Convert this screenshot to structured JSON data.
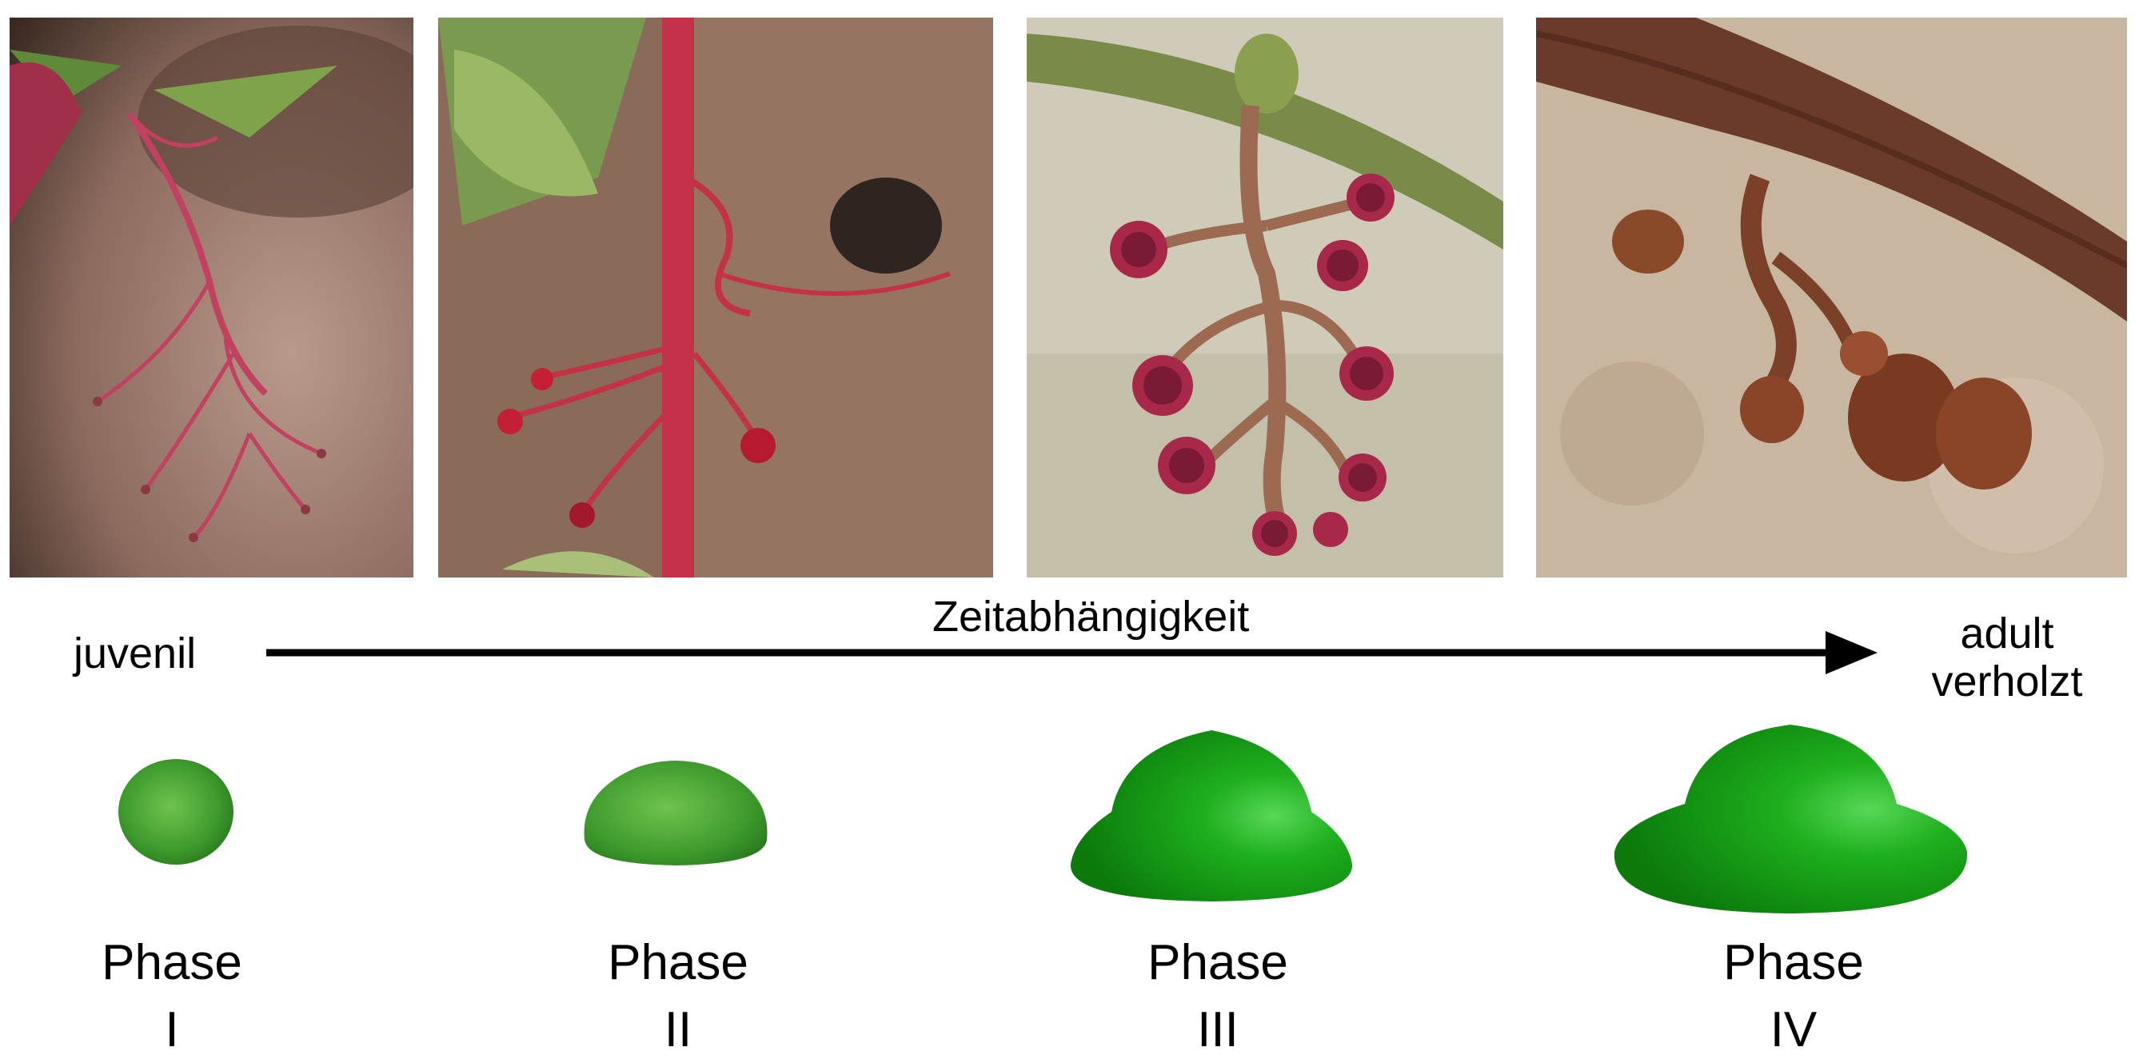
{
  "photos": [
    {
      "name": "photo-phase-1",
      "description": "juvenile red tendrils"
    },
    {
      "name": "photo-phase-2",
      "description": "tendrils touching wall"
    },
    {
      "name": "photo-phase-3",
      "description": "adhesive pads attached"
    },
    {
      "name": "photo-phase-4",
      "description": "woody dried pads"
    }
  ],
  "timeline": {
    "start_label": "juvenil",
    "axis_label": "Zeitabhängigkeit",
    "end_label_line1": "adult",
    "end_label_line2": "verholzt"
  },
  "phases": [
    {
      "word": "Phase",
      "numeral": "I"
    },
    {
      "word": "Phase",
      "numeral": "II"
    },
    {
      "word": "Phase",
      "numeral": "III"
    },
    {
      "word": "Phase",
      "numeral": "IV"
    }
  ],
  "colors": {
    "pad_green": "#1f9a1f",
    "tendril_red": "#c0304e",
    "arrow": "#000000"
  }
}
